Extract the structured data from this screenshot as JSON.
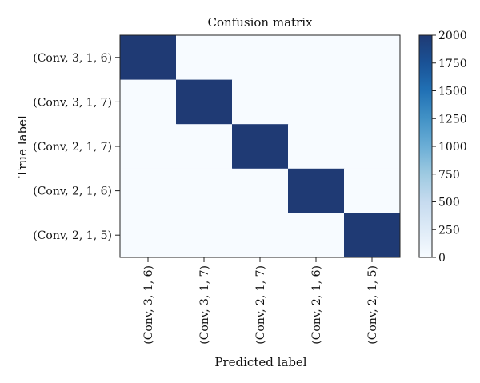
{
  "chart_data": {
    "type": "heatmap",
    "title": "Confusion matrix",
    "xlabel": "Predicted label",
    "ylabel": "True label",
    "x_categories": [
      "(Conv, 3, 1, 6)",
      "(Conv, 3, 1, 7)",
      "(Conv, 2, 1, 7)",
      "(Conv, 2, 1, 6)",
      "(Conv, 2, 1, 5)"
    ],
    "y_categories": [
      "(Conv, 3, 1, 6)",
      "(Conv, 3, 1, 7)",
      "(Conv, 2, 1, 7)",
      "(Conv, 2, 1, 6)",
      "(Conv, 2, 1, 5)"
    ],
    "values": [
      [
        2000,
        0,
        0,
        0,
        0
      ],
      [
        0,
        2000,
        0,
        0,
        0
      ],
      [
        0,
        0,
        2000,
        0,
        0
      ],
      [
        0,
        0,
        0,
        2000,
        0
      ],
      [
        0,
        0,
        0,
        0,
        2000
      ]
    ],
    "colorbar": {
      "range": [
        0,
        2000
      ],
      "ticks": [
        0,
        250,
        500,
        750,
        1000,
        1250,
        1500,
        1750,
        2000
      ],
      "colormap": "Blues",
      "color_low": "#f7fbff",
      "color_high": "#1f3a74"
    }
  }
}
